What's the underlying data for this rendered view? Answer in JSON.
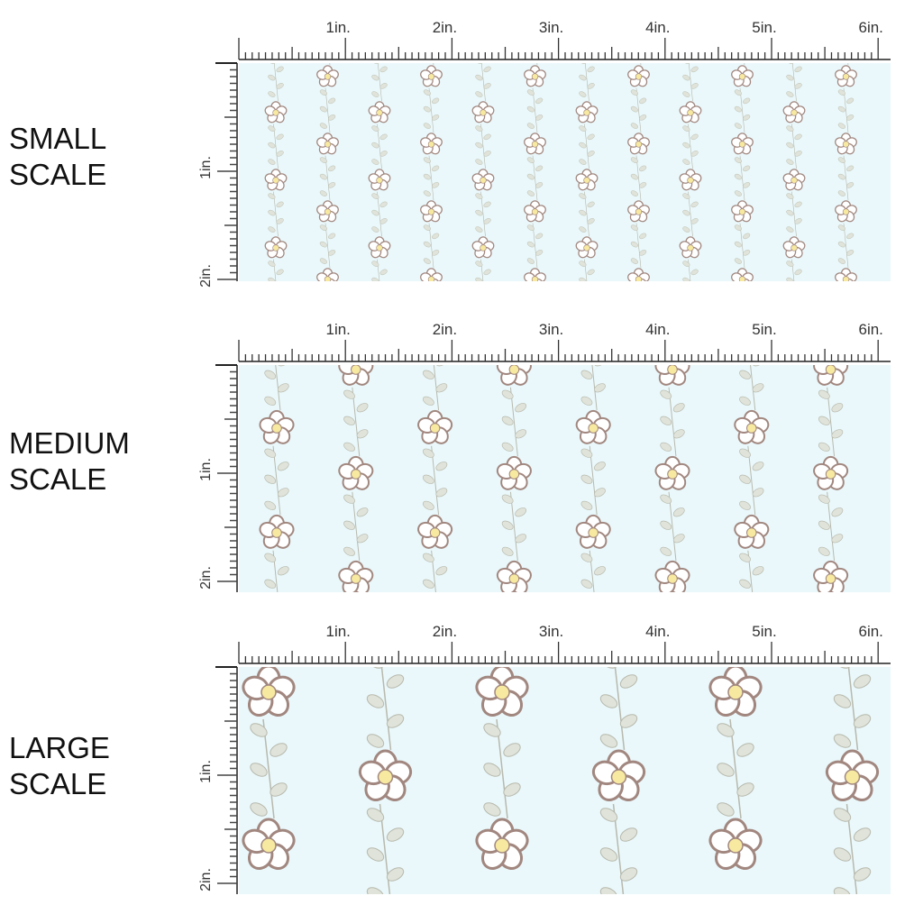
{
  "colors": {
    "background": "#eaf8fb",
    "petal_outline": "#a1877f",
    "petal_fill": "#ffffff",
    "flower_center": "#f7e9a0",
    "leaf": "#dfe3d9",
    "leaf_outline": "#b7b9ad"
  },
  "ruler": {
    "top_labels": [
      "1in.",
      "2in.",
      "3in.",
      "4in.",
      "5in.",
      "6in."
    ],
    "side_labels": [
      "1in.",
      "2in."
    ]
  },
  "panels": [
    {
      "label_line1": "SMALL",
      "label_line2": "SCALE",
      "pattern": "daisy-vine-stripe"
    },
    {
      "label_line1": "MEDIUM",
      "label_line2": "SCALE",
      "pattern": "daisy-vine-stripe"
    },
    {
      "label_line1": "LARGE",
      "label_line2": "SCALE",
      "pattern": "daisy-vine-stripe"
    }
  ]
}
